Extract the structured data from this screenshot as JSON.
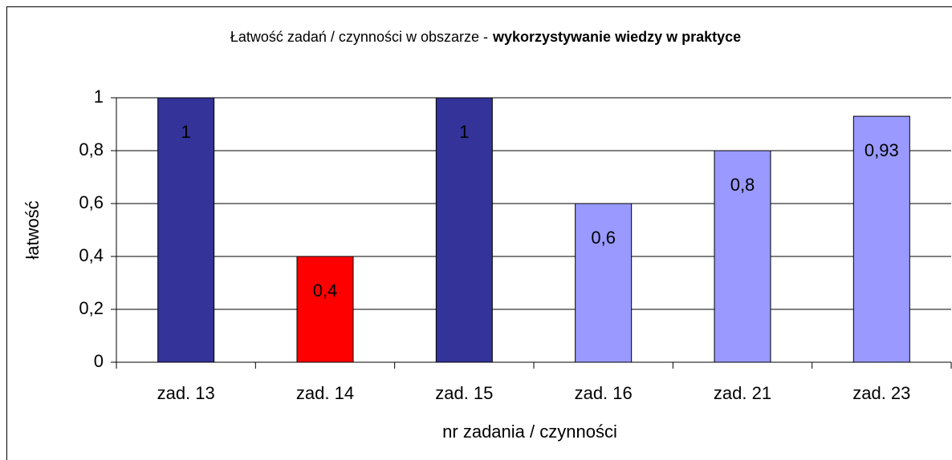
{
  "chart_data": {
    "type": "bar",
    "title": "Łatwość zadań / czynności w obszarze -",
    "title_emphasis": "wykorzystywanie wiedzy w praktyce",
    "x_label": "nr zadania / czynności",
    "y_label": "łatwość",
    "categories": [
      "zad. 13",
      "zad. 14",
      "zad. 15",
      "zad. 16",
      "zad. 21",
      "zad. 23"
    ],
    "values": [
      1,
      0.4,
      1,
      0.6,
      0.8,
      0.93
    ],
    "value_labels": [
      "1",
      "0,4",
      "1",
      "0,6",
      "0,8",
      "0,93"
    ],
    "colors": [
      "#333399",
      "#ff0000",
      "#333399",
      "#9999ff",
      "#9999ff",
      "#9999ff"
    ],
    "ylim": [
      0,
      1
    ],
    "yticks": [
      0,
      {
        "value": 0.2,
        "label": "0,2"
      },
      {
        "value": 0.4,
        "label": "0,4"
      },
      {
        "value": 0.6,
        "label": "0,6"
      },
      {
        "value": 0.8,
        "label": "0,8"
      },
      1
    ],
    "grid": true
  }
}
